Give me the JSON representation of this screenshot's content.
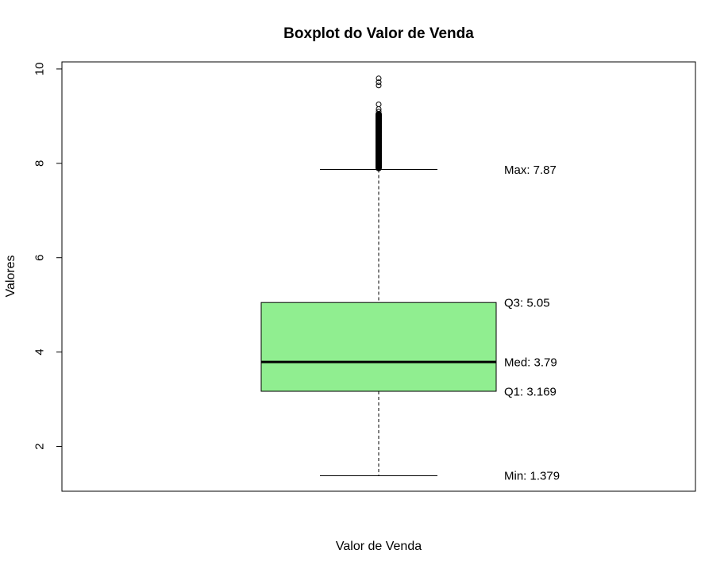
{
  "chart_data": {
    "type": "boxplot",
    "title": "Boxplot do Valor de Venda",
    "xlabel": "Valor de Venda",
    "ylabel": "Valores",
    "ylim": [
      1.05,
      10.15
    ],
    "yticks": [
      2,
      4,
      6,
      8,
      10
    ],
    "grid": false,
    "box_color": "#90ee90",
    "stats": {
      "min": 1.379,
      "q1": 3.169,
      "median": 3.79,
      "q3": 5.05,
      "max": 7.87
    },
    "outliers_dense_range": [
      7.9,
      9.05
    ],
    "outliers": [
      9.1,
      9.15,
      9.25,
      9.65,
      9.72,
      9.8
    ],
    "annotations": [
      {
        "id": "max",
        "text": "Max: 7.87",
        "value": 7.87
      },
      {
        "id": "q3",
        "text": "Q3: 5.05",
        "value": 5.05
      },
      {
        "id": "med",
        "text": "Med: 3.79",
        "value": 3.79
      },
      {
        "id": "q1",
        "text": "Q1: 3.169",
        "value": 3.169
      },
      {
        "id": "min",
        "text": "Min: 1.379",
        "value": 1.379
      }
    ]
  }
}
